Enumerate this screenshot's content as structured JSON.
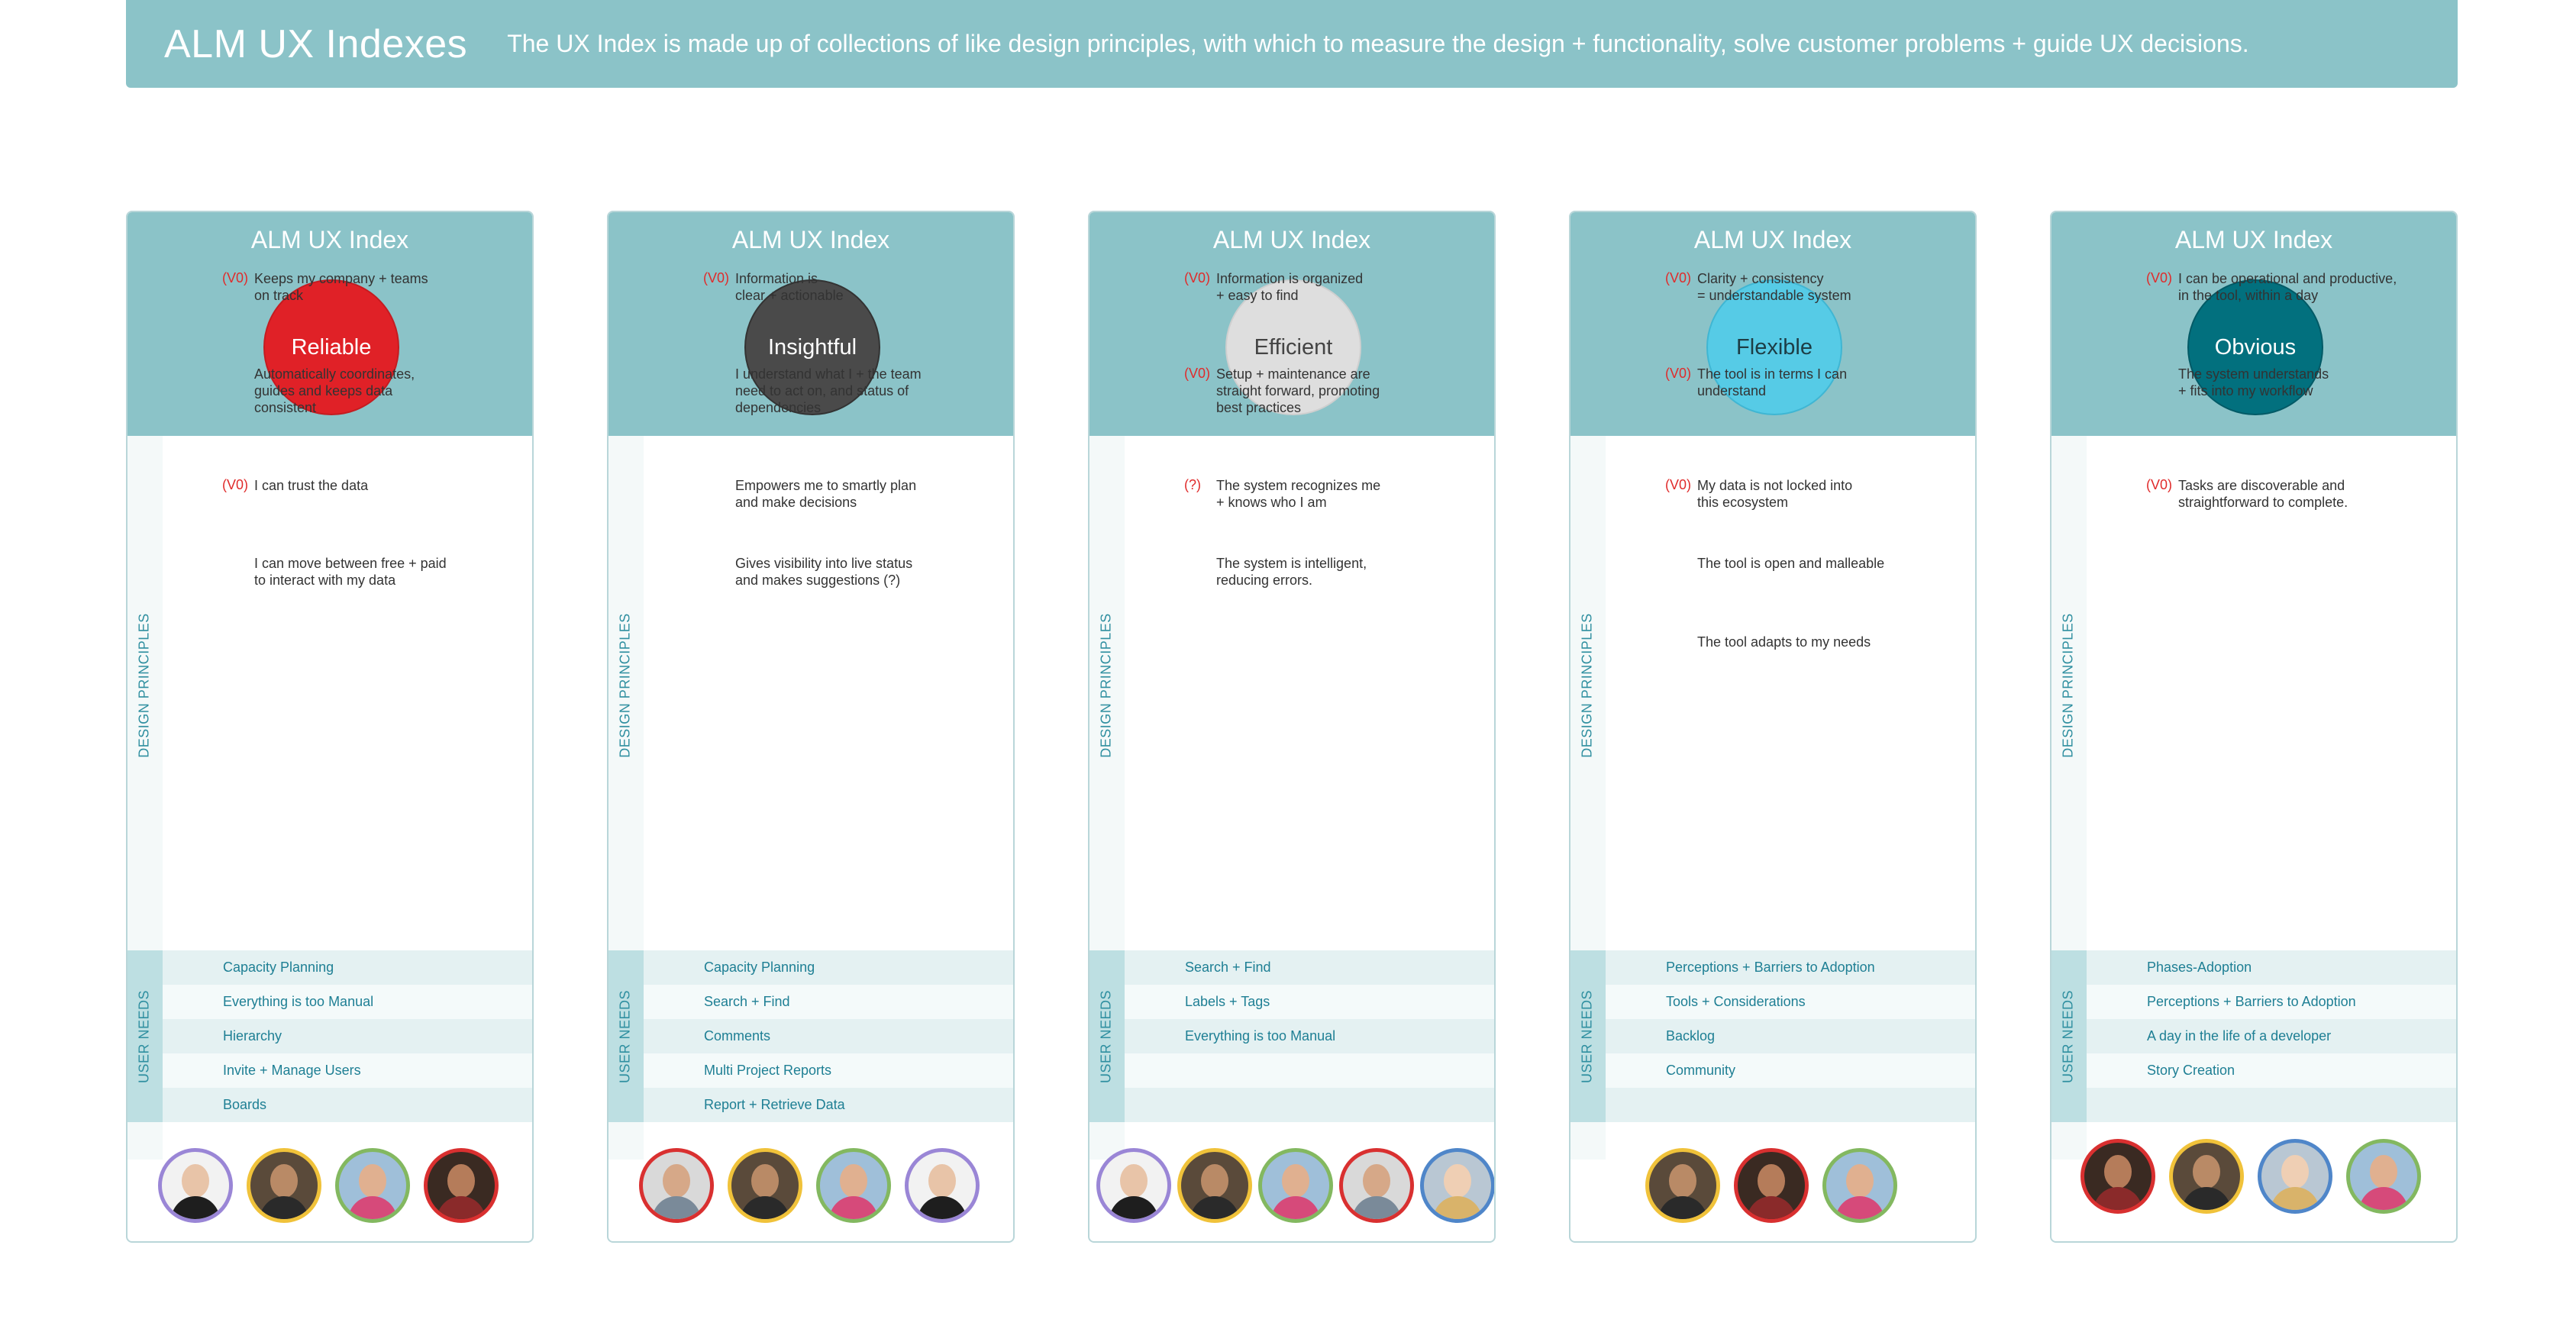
{
  "header": {
    "title": "ALM UX Indexes",
    "description": "The UX Index is made up of collections of like design principles, with which to measure the design + functionality, solve customer problems + guide UX decisions."
  },
  "labels": {
    "design_principles": "DESIGN PRINCIPLES",
    "user_needs": "USER NEEDS"
  },
  "colors": {
    "banner": "#8bc3c8",
    "tag": "#e02b2b",
    "user_need_text": "#1e7f94",
    "reliable": "#e02127",
    "insightful": "#4a4a4a",
    "efficient": "#dedede",
    "flexible": "#56cbe6",
    "obvious": "#02707e"
  },
  "cards": [
    {
      "title": "ALM UX Index",
      "principle": "Reliable",
      "principles": [
        {
          "tag": "(V0)",
          "text": "Keeps my company + teams\non track"
        },
        {
          "tag": "",
          "text": "Automatically coordinates,\nguides and keeps data\nconsistent"
        },
        {
          "tag": "(V0)",
          "text": "I can trust the data"
        },
        {
          "tag": "",
          "text": "I can move between free + paid\nto interact with my data"
        }
      ],
      "user_needs": [
        "Capacity Planning",
        "Everything is too Manual",
        "Hierarchy",
        "Invite + Manage Users",
        "Boards"
      ],
      "avatars": [
        "woman-glasses",
        "man-dark-hair",
        "man-sunglasses",
        "woman-dark-hair"
      ]
    },
    {
      "title": "ALM UX Index",
      "principle": "Insightful",
      "principles": [
        {
          "tag": "(V0)",
          "text": "Information is\nclear + actionable"
        },
        {
          "tag": "",
          "text": "I understand what I + the team\nneed to act on, and status of\ndependencies"
        },
        {
          "tag": "",
          "text": "Empowers me to smartly plan\nand make decisions"
        },
        {
          "tag": "",
          "text": "Gives visibility into live status\nand makes suggestions (?)"
        }
      ],
      "user_needs": [
        "Capacity Planning",
        "Search + Find",
        "Comments",
        "Multi Project Reports",
        "Report + Retrieve Data"
      ],
      "avatars": [
        "man-short-hair",
        "man-dark-hair",
        "man-sunglasses",
        "woman-glasses"
      ]
    },
    {
      "title": "ALM UX Index",
      "principle": "Efficient",
      "principles": [
        {
          "tag": "(V0)",
          "text": "Information is organized\n+ easy to find"
        },
        {
          "tag": "(V0)",
          "text": "Setup + maintenance are\nstraight forward, promoting\nbest practices"
        },
        {
          "tag": "(?)",
          "text": "The system recognizes me\n+ knows who I am"
        },
        {
          "tag": "",
          "text": "The system is intelligent,\nreducing errors."
        }
      ],
      "user_needs": [
        "Search + Find",
        "Labels + Tags",
        "Everything is too Manual",
        "",
        ""
      ],
      "avatars": [
        "woman-glasses",
        "man-dark-hair",
        "man-sunglasses",
        "man-short-hair",
        "woman-blonde"
      ]
    },
    {
      "title": "ALM UX Index",
      "principle": "Flexible",
      "principles": [
        {
          "tag": "(V0)",
          "text": "Clarity + consistency\n= understandable system"
        },
        {
          "tag": "(V0)",
          "text": "The tool is in terms I can\nunderstand"
        },
        {
          "tag": "(V0)",
          "text": "My data is not locked into\nthis ecosystem"
        },
        {
          "tag": "",
          "text": "The tool is open and malleable"
        },
        {
          "tag": "",
          "text": "The tool adapts to my needs"
        }
      ],
      "user_needs": [
        "Perceptions + Barriers to Adoption",
        "Tools + Considerations",
        "Backlog",
        "Community",
        ""
      ],
      "avatars": [
        "man-dark-hair",
        "woman-dark-hair",
        "man-sunglasses"
      ]
    },
    {
      "title": "ALM UX Index",
      "principle": "Obvious",
      "principles": [
        {
          "tag": "(V0)",
          "text": "I can be operational and productive,\nin the tool, within a day"
        },
        {
          "tag": "",
          "text": "The system understands\n+ fits into my workflow"
        },
        {
          "tag": "(V0)",
          "text": "Tasks are discoverable and\nstraightforward to complete."
        }
      ],
      "user_needs": [
        "Phases-Adoption",
        "Perceptions + Barriers to Adoption",
        "A day in the life of a developer",
        "Story Creation",
        ""
      ],
      "avatars": [
        "woman-dark-hair",
        "man-dark-hair",
        "woman-blonde",
        "man-sunglasses"
      ]
    }
  ]
}
